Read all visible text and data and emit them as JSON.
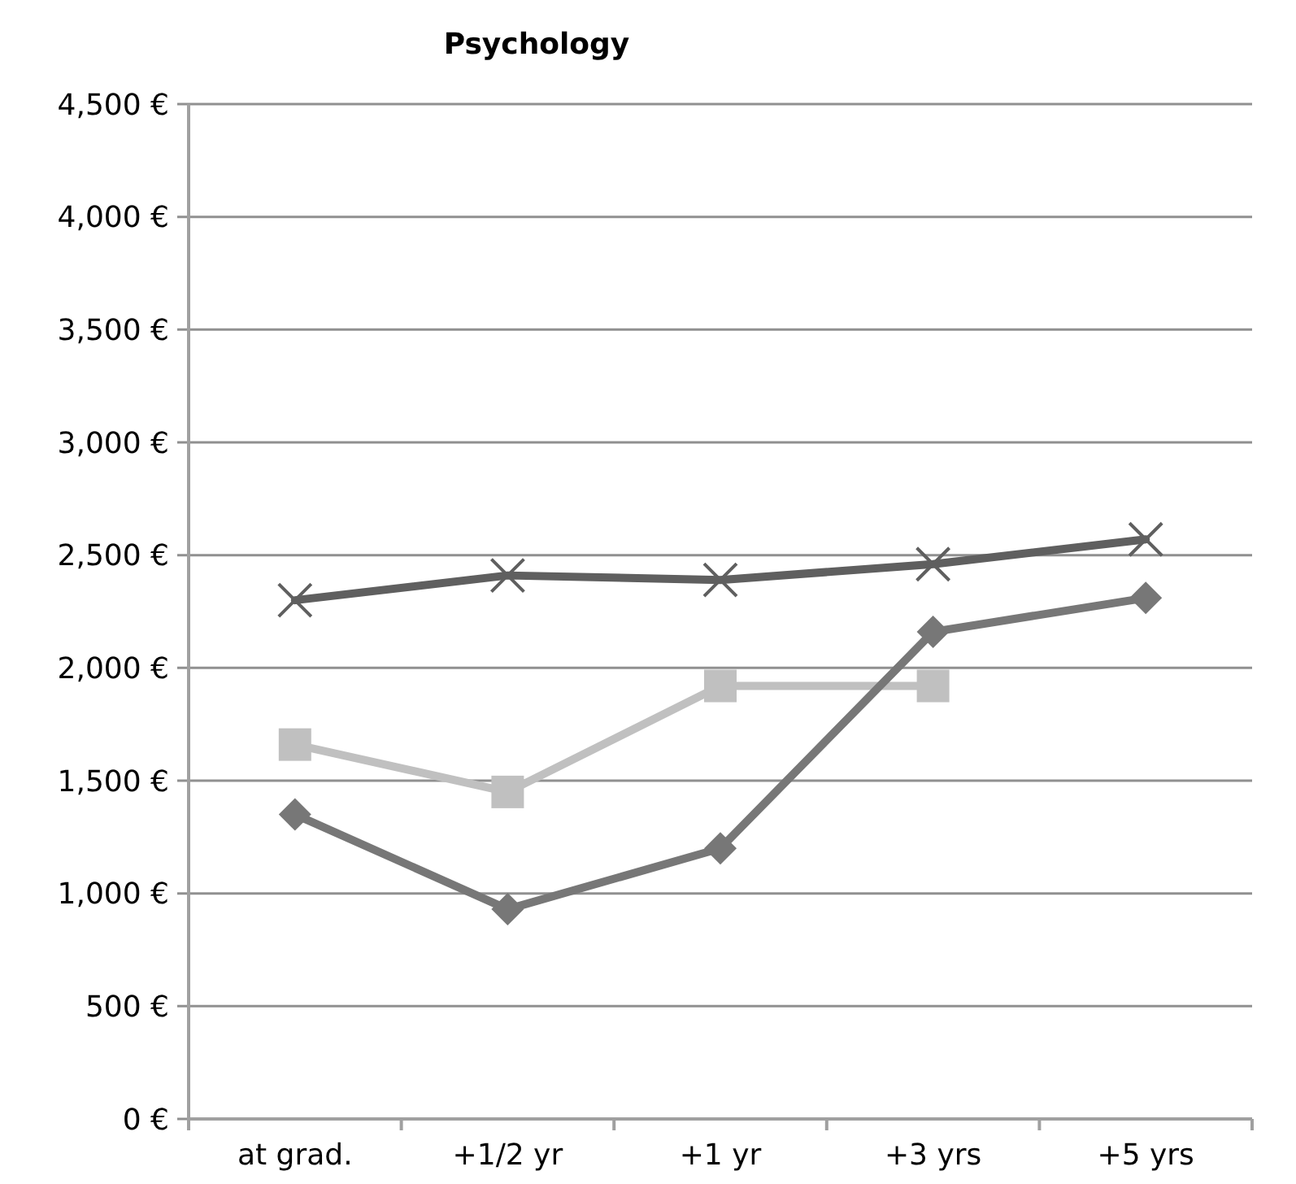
{
  "chart_data": {
    "type": "line",
    "title": "Psychology",
    "categories": [
      "at grad.",
      "+1/2 yr",
      "+1 yr",
      "+3 yrs",
      "+5 yrs"
    ],
    "series": [
      {
        "color": "#5f5f5f",
        "marker": "cross",
        "values": [
          2300,
          2410,
          2390,
          2460,
          2570
        ]
      },
      {
        "color": "#c0c0c0",
        "marker": "square",
        "values": [
          1660,
          1450,
          1920,
          1920,
          null
        ]
      },
      {
        "color": "#777777",
        "marker": "diamond",
        "values": [
          1350,
          930,
          1200,
          2160,
          2310
        ]
      }
    ],
    "ylim": [
      0,
      4500
    ],
    "yticks": [
      {
        "value": 0,
        "label": "0 €"
      },
      {
        "value": 500,
        "label": "500 €"
      },
      {
        "value": 1000,
        "label": "1,000 €"
      },
      {
        "value": 1500,
        "label": "1,500 €"
      },
      {
        "value": 2000,
        "label": "2,000 €"
      },
      {
        "value": 2500,
        "label": "2,500 €"
      },
      {
        "value": 3000,
        "label": "3,000 €"
      },
      {
        "value": 3500,
        "label": "3,500 €"
      },
      {
        "value": 4000,
        "label": "4,000 €"
      },
      {
        "value": 4500,
        "label": "4,500 €"
      }
    ],
    "grid": "y",
    "line_style": "solid"
  }
}
